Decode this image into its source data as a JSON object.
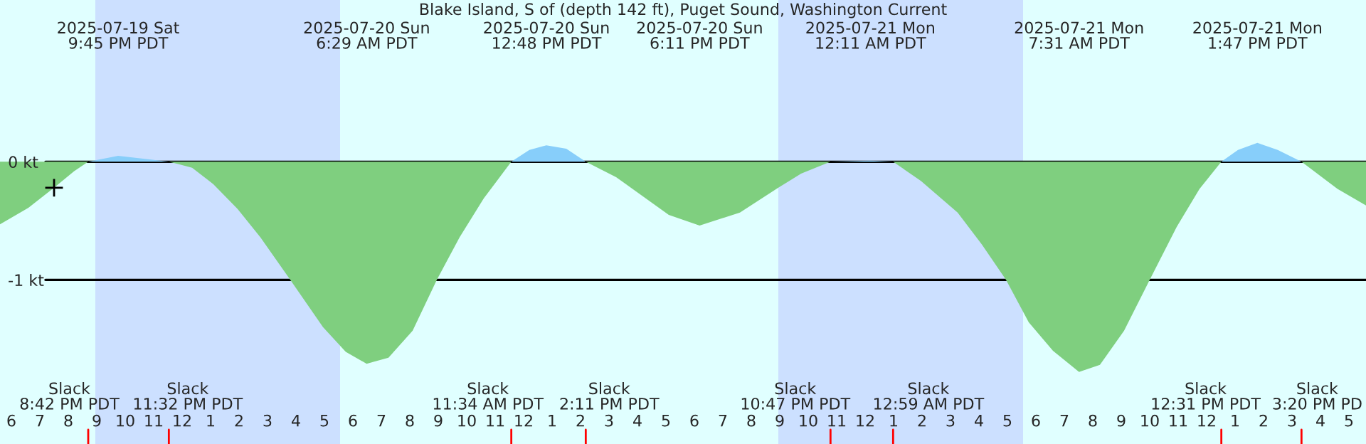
{
  "chart_data": {
    "type": "area",
    "title": "Blake Island, S of (depth 142 ft), Puget Sound, Washington Current",
    "series": [
      {
        "color": "#7fcf7f",
        "x": [
          "2025-07-19T17:36",
          "2025-07-19T18:36",
          "2025-07-19T19:30",
          "2025-07-19T20:12",
          "2025-07-19T20:42",
          "2025-07-19T23:32",
          "2025-07-20T00:21",
          "2025-07-20T01:06",
          "2025-07-20T01:57",
          "2025-07-20T02:45",
          "2025-07-20T03:48",
          "2025-07-20T04:57",
          "2025-07-20T05:45",
          "2025-07-20T06:29",
          "2025-07-20T07:15",
          "2025-07-20T08:06",
          "2025-07-20T08:57",
          "2025-07-20T09:45",
          "2025-07-20T10:36",
          "2025-07-20T11:34",
          "2025-07-20T14:11",
          "2025-07-20T15:15",
          "2025-07-20T17:06",
          "2025-07-20T18:11",
          "2025-07-20T19:36",
          "2025-07-20T20:57",
          "2025-07-20T21:45",
          "2025-07-20T22:47",
          "2025-07-21T00:59",
          "2025-07-21T01:57",
          "2025-07-21T03:15",
          "2025-07-21T04:06",
          "2025-07-21T04:57",
          "2025-07-21T05:45",
          "2025-07-21T06:36",
          "2025-07-21T07:31",
          "2025-07-21T08:15",
          "2025-07-21T09:06",
          "2025-07-21T10:00",
          "2025-07-21T10:57",
          "2025-07-21T11:45",
          "2025-07-21T12:31",
          "2025-07-21T15:20",
          "2025-07-21T16:36",
          "2025-07-21T17:36"
        ],
        "values": [
          -0.53,
          -0.39,
          -0.22,
          -0.08,
          0,
          0,
          -0.05,
          -0.19,
          -0.4,
          -0.64,
          -1.0,
          -1.4,
          -1.61,
          -1.71,
          -1.66,
          -1.43,
          -1.0,
          -0.64,
          -0.31,
          0,
          0,
          -0.13,
          -0.45,
          -0.54,
          -0.43,
          -0.22,
          -0.1,
          0,
          0,
          -0.16,
          -0.43,
          -0.7,
          -1.0,
          -1.36,
          -1.6,
          -1.78,
          -1.72,
          -1.43,
          -1.0,
          -0.55,
          -0.23,
          0,
          0,
          -0.23,
          -0.37
        ]
      },
      {
        "color": "#87cefa",
        "x": [
          "2025-07-19T20:42",
          "2025-07-19T21:45",
          "2025-07-19T22:51",
          "2025-07-19T23:32",
          "2025-07-20T11:34",
          "2025-07-20T12:12",
          "2025-07-20T12:48",
          "2025-07-20T13:30",
          "2025-07-20T14:11",
          "2025-07-20T22:47",
          "2025-07-21T00:11",
          "2025-07-21T00:59",
          "2025-07-21T12:31",
          "2025-07-21T13:06",
          "2025-07-21T13:47",
          "2025-07-21T14:30",
          "2025-07-21T15:20"
        ],
        "values": [
          0,
          0.05,
          0.02,
          0,
          0,
          0.1,
          0.14,
          0.11,
          0,
          0,
          0.01,
          0,
          0,
          0.1,
          0.16,
          0.1,
          0
        ]
      },
      {
        "type": "scatter",
        "marker": "cross",
        "color": "#000000",
        "x": [
          "2025-07-19T19:30"
        ],
        "values": [
          -0.22
        ]
      }
    ],
    "xlim": [
      "2025-07-19T17:36",
      "2025-07-21T17:36"
    ],
    "xticks": [
      {
        "value": "2025-07-19T18:00",
        "label": "6"
      },
      {
        "value": "2025-07-19T19:00",
        "label": "7"
      },
      {
        "value": "2025-07-19T20:00",
        "label": "8"
      },
      {
        "value": "2025-07-19T21:00",
        "label": "9"
      },
      {
        "value": "2025-07-19T22:00",
        "label": "10"
      },
      {
        "value": "2025-07-19T23:00",
        "label": "11"
      },
      {
        "value": "2025-07-20T00:00",
        "label": "12"
      },
      {
        "value": "2025-07-20T01:00",
        "label": "1"
      },
      {
        "value": "2025-07-20T02:00",
        "label": "2"
      },
      {
        "value": "2025-07-20T03:00",
        "label": "3"
      },
      {
        "value": "2025-07-20T04:00",
        "label": "4"
      },
      {
        "value": "2025-07-20T05:00",
        "label": "5"
      },
      {
        "value": "2025-07-20T06:00",
        "label": "6"
      },
      {
        "value": "2025-07-20T07:00",
        "label": "7"
      },
      {
        "value": "2025-07-20T08:00",
        "label": "8"
      },
      {
        "value": "2025-07-20T09:00",
        "label": "9"
      },
      {
        "value": "2025-07-20T10:00",
        "label": "10"
      },
      {
        "value": "2025-07-20T11:00",
        "label": "11"
      },
      {
        "value": "2025-07-20T12:00",
        "label": "12"
      },
      {
        "value": "2025-07-20T13:00",
        "label": "1"
      },
      {
        "value": "2025-07-20T14:00",
        "label": "2"
      },
      {
        "value": "2025-07-20T15:00",
        "label": "3"
      },
      {
        "value": "2025-07-20T16:00",
        "label": "4"
      },
      {
        "value": "2025-07-20T17:00",
        "label": "5"
      },
      {
        "value": "2025-07-20T18:00",
        "label": "6"
      },
      {
        "value": "2025-07-20T19:00",
        "label": "7"
      },
      {
        "value": "2025-07-20T20:00",
        "label": "8"
      },
      {
        "value": "2025-07-20T21:00",
        "label": "9"
      },
      {
        "value": "2025-07-20T22:00",
        "label": "10"
      },
      {
        "value": "2025-07-20T23:00",
        "label": "11"
      },
      {
        "value": "2025-07-21T00:00",
        "label": "12"
      },
      {
        "value": "2025-07-21T01:00",
        "label": "1"
      },
      {
        "value": "2025-07-21T02:00",
        "label": "2"
      },
      {
        "value": "2025-07-21T03:00",
        "label": "3"
      },
      {
        "value": "2025-07-21T04:00",
        "label": "4"
      },
      {
        "value": "2025-07-21T05:00",
        "label": "5"
      },
      {
        "value": "2025-07-21T06:00",
        "label": "6"
      },
      {
        "value": "2025-07-21T07:00",
        "label": "7"
      },
      {
        "value": "2025-07-21T08:00",
        "label": "8"
      },
      {
        "value": "2025-07-21T09:00",
        "label": "9"
      },
      {
        "value": "2025-07-21T10:00",
        "label": "10"
      },
      {
        "value": "2025-07-21T11:00",
        "label": "11"
      },
      {
        "value": "2025-07-21T12:00",
        "label": "12"
      },
      {
        "value": "2025-07-21T13:00",
        "label": "1"
      },
      {
        "value": "2025-07-21T14:00",
        "label": "2"
      },
      {
        "value": "2025-07-21T15:00",
        "label": "3"
      },
      {
        "value": "2025-07-21T16:00",
        "label": "4"
      },
      {
        "value": "2025-07-21T17:00",
        "label": "5"
      }
    ],
    "ylim": [
      -2.39,
      1.37
    ],
    "yticks": [
      {
        "value": -1,
        "label": "-1 kt"
      },
      {
        "value": 0,
        "label": "0 kt"
      }
    ],
    "grid": "y",
    "bands": [
      {
        "axis": "x",
        "from": "2025-07-19T20:57",
        "to": "2025-07-20T05:33",
        "color": "#cce0ff"
      },
      {
        "axis": "x",
        "from": "2025-07-20T20:57",
        "to": "2025-07-21T05:33",
        "color": "#cce0ff"
      }
    ],
    "annotations": [
      "2025-07-19 Sat\n9:45 PM PDT",
      "2025-07-20 Sun\n6:29 AM PDT",
      "2025-07-20 Sun\n12:48 PM PDT",
      "2025-07-20 Sun\n6:11 PM PDT",
      "2025-07-21 Mon\n12:11 AM PDT",
      "2025-07-21 Mon\n7:31 AM PDT",
      "2025-07-21 Mon\n1:47 PM PDT",
      "Slack\n8:42 PM PDT",
      "Slack\n11:32 PM PDT",
      "Slack\n11:34 AM PDT",
      "Slack\n2:11 PM PDT",
      "Slack\n10:47 PM PDT",
      "Slack\n12:59 AM PDT",
      "Slack\n12:31 PM PDT",
      "Slack\n3:20 PM PD"
    ]
  }
}
